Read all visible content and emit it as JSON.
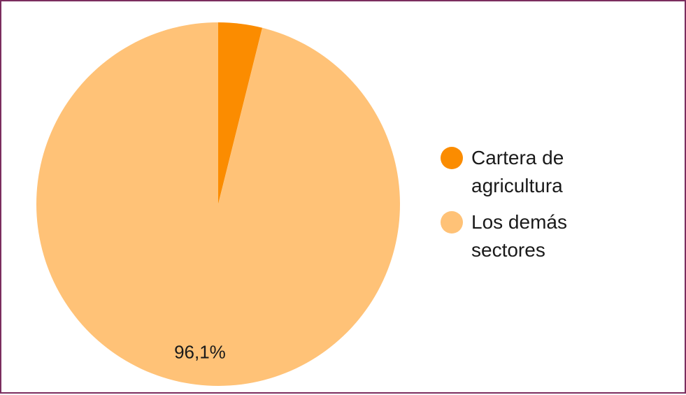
{
  "chart_data": {
    "type": "pie",
    "categories": [
      "Cartera de agricultura",
      "Los demás sectores"
    ],
    "values": [
      3.9,
      96.1
    ],
    "colors": [
      "#fb8c00",
      "#ffc277"
    ],
    "data_labels": [
      "",
      "96,1%"
    ],
    "legend": "right"
  }
}
